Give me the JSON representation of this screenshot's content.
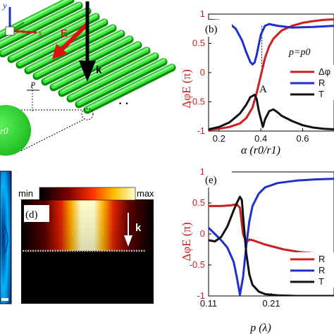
{
  "panels": {
    "a_partial": {
      "axis_y": "y",
      "axis_x": "x",
      "e_label": "E",
      "k_label": "k",
      "p_label": "p",
      "r0_label": "r0",
      "ellipsis": "· ·"
    },
    "c_partial": {
      "colors": {
        "background": "#0a2a7a",
        "high": "#00b4ff"
      }
    },
    "d": {
      "label": "(d)",
      "colorbar_min": "min",
      "colorbar_max": "max",
      "k_label": "k",
      "colors": [
        "#000000",
        "#7a0000",
        "#ff3000",
        "#ffc000",
        "#ffffd0"
      ]
    },
    "b": {
      "label": "(b)",
      "condition": "p=p0",
      "ylabel": "ΔφE (π)",
      "xlabel": "α (r0/r1)",
      "annotation": "A",
      "legend": [
        "Δφ",
        "R",
        "T"
      ]
    },
    "e": {
      "label": "(e)",
      "ylabel": "ΔφE (π)",
      "xlabel": "p (λ)",
      "legend": [
        "R",
        "R",
        "T"
      ]
    }
  },
  "chart_data": [
    {
      "type": "line",
      "panel": "(b)",
      "xlabel": "α (r0/r1)",
      "ylabel": "ΔφE (π)",
      "xlim": [
        0.15,
        0.75
      ],
      "ylim": [
        -1,
        1
      ],
      "xticks": [
        "0.2",
        "0.4",
        "0.6"
      ],
      "xtick_values": [
        0.2,
        0.4,
        0.6
      ],
      "yticks": [
        "1",
        "0.5",
        "0",
        "-0.5",
        "-1"
      ],
      "ytick_values": [
        1,
        0.5,
        0,
        -0.5,
        -1
      ],
      "series": [
        {
          "color": "#cc1f1f",
          "x": [
            0.15,
            0.2,
            0.25,
            0.3,
            0.33,
            0.36,
            0.38,
            0.4,
            0.42,
            0.44,
            0.46,
            0.5,
            0.55,
            0.6,
            0.65,
            0.7,
            0.75
          ],
          "y": [
            -0.98,
            -0.96,
            -0.93,
            -0.87,
            -0.78,
            -0.6,
            -0.35,
            -0.05,
            0.25,
            0.45,
            0.58,
            0.72,
            0.8,
            0.85,
            0.88,
            0.9,
            0.91
          ]
        },
        {
          "color": "#1f2fcc",
          "x": [
            0.15,
            0.2,
            0.25,
            0.28,
            0.31,
            0.33,
            0.35,
            0.36,
            0.37,
            0.38,
            0.4,
            0.42,
            0.44,
            0.48,
            0.55,
            0.65,
            0.75
          ],
          "y": [
            0.9,
            0.89,
            0.84,
            0.75,
            0.55,
            0.35,
            0.18,
            0.14,
            0.17,
            0.3,
            0.65,
            0.8,
            0.83,
            0.8,
            0.77,
            0.78,
            0.8
          ]
        },
        {
          "color": "#111111",
          "x": [
            0.15,
            0.2,
            0.25,
            0.3,
            0.33,
            0.35,
            0.37,
            0.38,
            0.39,
            0.41,
            0.42,
            0.44,
            0.46,
            0.48,
            0.5,
            0.55,
            0.6,
            0.65,
            0.7,
            0.75
          ],
          "y": [
            -0.97,
            -0.93,
            -0.85,
            -0.7,
            -0.55,
            -0.42,
            -0.38,
            -0.45,
            -0.65,
            -0.93,
            -0.8,
            -0.66,
            -0.63,
            -0.68,
            -0.74,
            -0.83,
            -0.9,
            -0.94,
            -0.96,
            -0.97
          ]
        }
      ]
    },
    {
      "type": "line",
      "panel": "(e)",
      "xlabel": "p (λ)",
      "ylabel": "ΔφE (π)",
      "xlim": [
        0.11,
        0.31
      ],
      "ylim": [
        -1,
        1
      ],
      "xticks": [
        "0.11",
        "0.21"
      ],
      "xtick_values": [
        0.11,
        0.21
      ],
      "yticks": [
        "1",
        "0.5",
        "0",
        "-0.5",
        "-1"
      ],
      "ytick_values": [
        1,
        0.5,
        0,
        -0.5,
        -1
      ],
      "series": [
        {
          "color": "#cc1f1f",
          "x": [
            0.11,
            0.13,
            0.145,
            0.155,
            0.16,
            0.165,
            0.17,
            0.175,
            0.18,
            0.2,
            0.23,
            0.26,
            0.29,
            0.31
          ],
          "y": [
            0.45,
            0.45,
            0.46,
            0.48,
            0.42,
            0.0,
            -0.14,
            -0.09,
            -0.1,
            -0.17,
            -0.25,
            -0.3,
            -0.32,
            -0.33
          ]
        },
        {
          "color": "#1f2fcc",
          "x": [
            0.11,
            0.12,
            0.13,
            0.14,
            0.15,
            0.155,
            0.16,
            0.165,
            0.17,
            0.175,
            0.18,
            0.19,
            0.2,
            0.22,
            0.25,
            0.28,
            0.31
          ],
          "y": [
            0.1,
            0.0,
            -0.1,
            -0.22,
            -0.45,
            -0.7,
            -0.98,
            -0.7,
            -0.2,
            0.2,
            0.45,
            0.65,
            0.75,
            0.82,
            0.86,
            0.88,
            0.89
          ]
        },
        {
          "color": "#111111",
          "x": [
            0.11,
            0.12,
            0.13,
            0.14,
            0.15,
            0.155,
            0.16,
            0.163,
            0.165,
            0.17,
            0.175,
            0.18,
            0.19,
            0.2,
            0.22,
            0.25,
            0.31
          ],
          "y": [
            -0.1,
            -0.12,
            -0.05,
            0.12,
            0.38,
            0.5,
            0.6,
            0.55,
            0.3,
            -0.3,
            -0.65,
            -0.82,
            -0.93,
            -0.97,
            -0.99,
            -1.0,
            -1.0
          ]
        }
      ]
    }
  ]
}
